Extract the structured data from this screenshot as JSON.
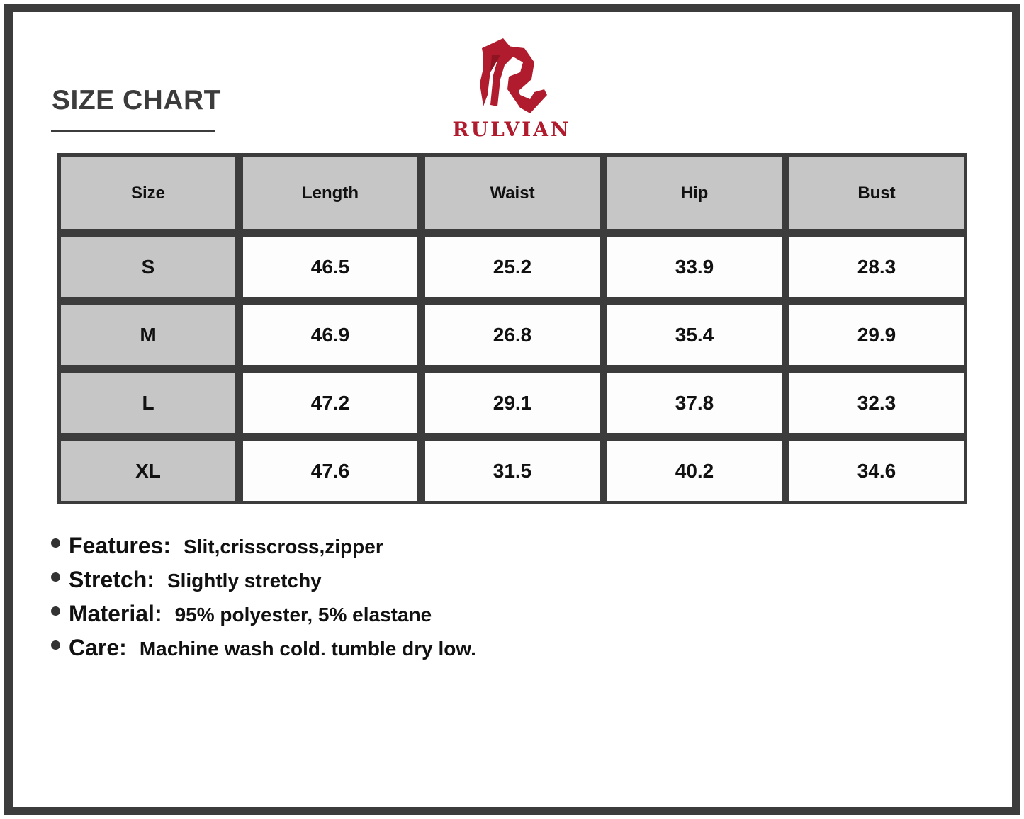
{
  "title": "SIZE CHART",
  "brand": {
    "name": "RULVIAN",
    "color": "#b01c2e"
  },
  "table": {
    "headers": [
      "Size",
      "Length",
      "Waist",
      "Hip",
      "Bust"
    ],
    "rows": [
      [
        "S",
        "46.5",
        "25.2",
        "33.9",
        "28.3"
      ],
      [
        "M",
        "46.9",
        "26.8",
        "35.4",
        "29.9"
      ],
      [
        "L",
        "47.2",
        "29.1",
        "37.8",
        "32.3"
      ],
      [
        "XL",
        "47.6",
        "31.5",
        "40.2",
        "34.6"
      ]
    ]
  },
  "notes": [
    {
      "label": "Features:",
      "value": "Slit,crisscross,zipper"
    },
    {
      "label": "Stretch:",
      "value": "Slightly stretchy"
    },
    {
      "label": "Material:",
      "value": "95% polyester, 5% elastane"
    },
    {
      "label": "Care:",
      "value": "Machine wash cold. tumble dry low."
    }
  ]
}
